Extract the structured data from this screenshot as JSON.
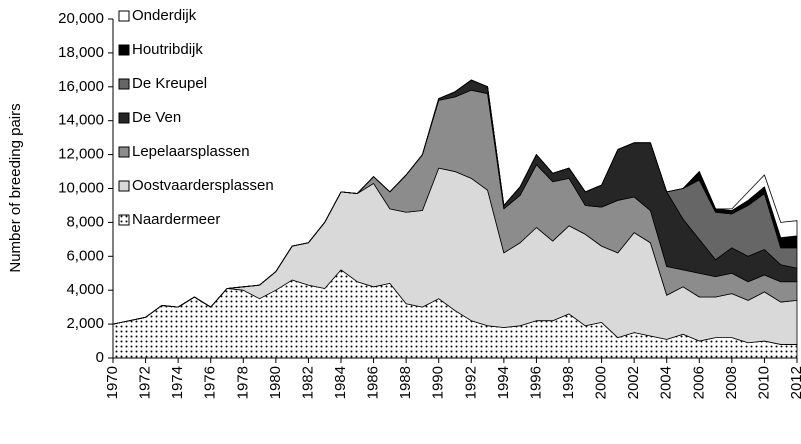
{
  "chart_data": {
    "type": "stacked-area",
    "y_label": "Number of breeding pairs",
    "x": [
      1970,
      1971,
      1972,
      1973,
      1974,
      1975,
      1976,
      1977,
      1978,
      1979,
      1980,
      1981,
      1982,
      1983,
      1984,
      1985,
      1986,
      1987,
      1988,
      1989,
      1990,
      1991,
      1992,
      1993,
      1994,
      1995,
      1996,
      1997,
      1998,
      1999,
      2000,
      2001,
      2002,
      2003,
      2004,
      2005,
      2006,
      2007,
      2008,
      2009,
      2010,
      2011,
      2012
    ],
    "xlim": [
      1970,
      2012
    ],
    "xticks": [
      1970,
      1972,
      1974,
      1976,
      1978,
      1980,
      1982,
      1984,
      1986,
      1988,
      1990,
      1992,
      1994,
      1996,
      1998,
      2000,
      2002,
      2004,
      2006,
      2008,
      2010,
      2012
    ],
    "ylim": [
      0,
      20000
    ],
    "yticks": [
      0,
      {
        "value": 2000,
        "label": "2,000"
      },
      {
        "value": 4000,
        "label": "4,000"
      },
      {
        "value": 6000,
        "label": "6,000"
      },
      {
        "value": 8000,
        "label": "8,000"
      },
      {
        "value": 10000,
        "label": "10,000"
      },
      {
        "value": 12000,
        "label": "12,000"
      },
      {
        "value": 14000,
        "label": "14,000"
      },
      {
        "value": 16000,
        "label": "16,000"
      },
      {
        "value": 18000,
        "label": "18,000"
      },
      {
        "value": 20000,
        "label": "20,000"
      }
    ],
    "legend": "upper left",
    "series": [
      {
        "name": "Naardermeer",
        "color": "#ffffff",
        "fill_pattern": "dotted",
        "values": [
          2000,
          2200,
          2400,
          3100,
          3000,
          3600,
          3000,
          4100,
          4000,
          3500,
          4000,
          4600,
          4300,
          4100,
          5200,
          4500,
          4200,
          4400,
          3200,
          3000,
          3500,
          2800,
          2200,
          1900,
          1800,
          1900,
          2200,
          2200,
          2600,
          1900,
          2100,
          1200,
          1500,
          1300,
          1100,
          1400,
          1000,
          1200,
          1200,
          900,
          1000,
          800,
          800
        ]
      },
      {
        "name": "Oostvaardersplassen",
        "color": "#d9d9d9",
        "values": [
          0,
          0,
          0,
          0,
          0,
          0,
          0,
          0,
          200,
          800,
          1100,
          2000,
          2500,
          3900,
          4600,
          5200,
          6100,
          4400,
          5400,
          5700,
          7700,
          8200,
          8400,
          8000,
          4400,
          4900,
          5500,
          4700,
          5200,
          5400,
          4500,
          5000,
          5900,
          5500,
          2600,
          2800,
          2600,
          2400,
          2600,
          2500,
          2900,
          2500,
          2600
        ]
      },
      {
        "name": "Lepelaarsplassen",
        "color": "#8c8c8c",
        "values": [
          0,
          0,
          0,
          0,
          0,
          0,
          0,
          0,
          0,
          0,
          0,
          0,
          0,
          0,
          0,
          0,
          400,
          1000,
          2200,
          3300,
          4000,
          4400,
          5200,
          5700,
          2600,
          2800,
          3700,
          3500,
          2800,
          1700,
          2300,
          3100,
          2100,
          1900,
          1700,
          1000,
          1400,
          1200,
          1200,
          1100,
          1000,
          1200,
          1100
        ]
      },
      {
        "name": "De Ven",
        "color": "#262626",
        "values": [
          0,
          0,
          0,
          0,
          0,
          0,
          0,
          0,
          0,
          0,
          0,
          0,
          0,
          0,
          0,
          0,
          0,
          0,
          0,
          0,
          100,
          300,
          600,
          400,
          200,
          500,
          600,
          500,
          600,
          800,
          1300,
          3000,
          3200,
          4000,
          4400,
          3000,
          2000,
          1000,
          1500,
          1500,
          1500,
          1000,
          800
        ]
      },
      {
        "name": "De Kreupel",
        "color": "#666666",
        "values": [
          0,
          0,
          0,
          0,
          0,
          0,
          0,
          0,
          0,
          0,
          0,
          0,
          0,
          0,
          0,
          0,
          0,
          0,
          0,
          0,
          0,
          0,
          0,
          0,
          0,
          0,
          0,
          0,
          0,
          0,
          0,
          0,
          0,
          0,
          0,
          1800,
          3500,
          2800,
          2000,
          3000,
          3300,
          1000,
          1200
        ]
      },
      {
        "name": "Houtribdijk",
        "color": "#000000",
        "values": [
          0,
          0,
          0,
          0,
          0,
          0,
          0,
          0,
          0,
          0,
          0,
          0,
          0,
          0,
          0,
          0,
          0,
          0,
          0,
          0,
          0,
          0,
          0,
          0,
          0,
          0,
          0,
          0,
          0,
          0,
          0,
          0,
          0,
          0,
          0,
          0,
          500,
          200,
          200,
          300,
          400,
          600,
          700
        ]
      },
      {
        "name": "Onderdijk",
        "color": "#ffffff",
        "values": [
          0,
          0,
          0,
          0,
          0,
          0,
          0,
          0,
          0,
          0,
          0,
          0,
          0,
          0,
          0,
          0,
          0,
          0,
          0,
          0,
          0,
          0,
          0,
          0,
          0,
          0,
          0,
          0,
          0,
          0,
          0,
          0,
          0,
          0,
          0,
          0,
          0,
          0,
          100,
          500,
          700,
          900,
          900
        ]
      }
    ]
  }
}
